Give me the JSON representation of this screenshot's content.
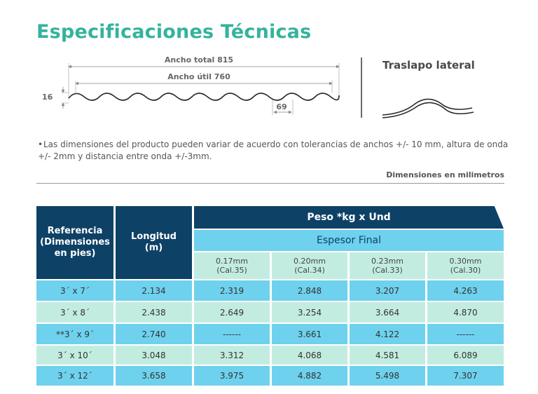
{
  "title": "Especificaciones Técnicas",
  "diagram": {
    "total_width_label": "Ancho total 815",
    "useful_width_label": "Ancho útil 760",
    "wave_height_label": "16",
    "wave_pitch_label": "69"
  },
  "lap": {
    "title": "Traslapo lateral"
  },
  "note": "Las dimensiones del producto pueden variar de acuerdo con tolerancias de  anchos +/- 10 mm, altura de onda +/- 2mm y distancia entre onda +/-3mm.",
  "units_label": "Dimensiones en milimetros",
  "table": {
    "headers": {
      "reference": "Referencia (Dimensiones en pies)",
      "length": "Longitud (m)",
      "weight": "Peso *kg x Und",
      "thickness": "Espesor Final"
    },
    "thickness_cols": [
      {
        "mm": "0.17mm",
        "cal": "(Cal.35)"
      },
      {
        "mm": "0.20mm",
        "cal": "(Cal.34)"
      },
      {
        "mm": "0.23mm",
        "cal": "(Cal.33)"
      },
      {
        "mm": "0.30mm",
        "cal": "(Cal.30)"
      }
    ],
    "rows": [
      {
        "ref": "3´ x 7´",
        "length": "2.134",
        "w": [
          "2.319",
          "2.848",
          "3.207",
          "4.263"
        ]
      },
      {
        "ref": "3´ x 8´",
        "length": "2.438",
        "w": [
          "2.649",
          "3.254",
          "3.664",
          "4.870"
        ]
      },
      {
        "ref": "**3´ x 9´",
        "length": "2.740",
        "w": [
          "------",
          "3.661",
          "4.122",
          "------"
        ]
      },
      {
        "ref": "3´ x 10´",
        "length": "3.048",
        "w": [
          "3.312",
          "4.068",
          "4.581",
          "6.089"
        ]
      },
      {
        "ref": "3´ x 12´",
        "length": "3.658",
        "w": [
          "3.975",
          "4.882",
          "5.498",
          "7.307"
        ]
      }
    ]
  }
}
